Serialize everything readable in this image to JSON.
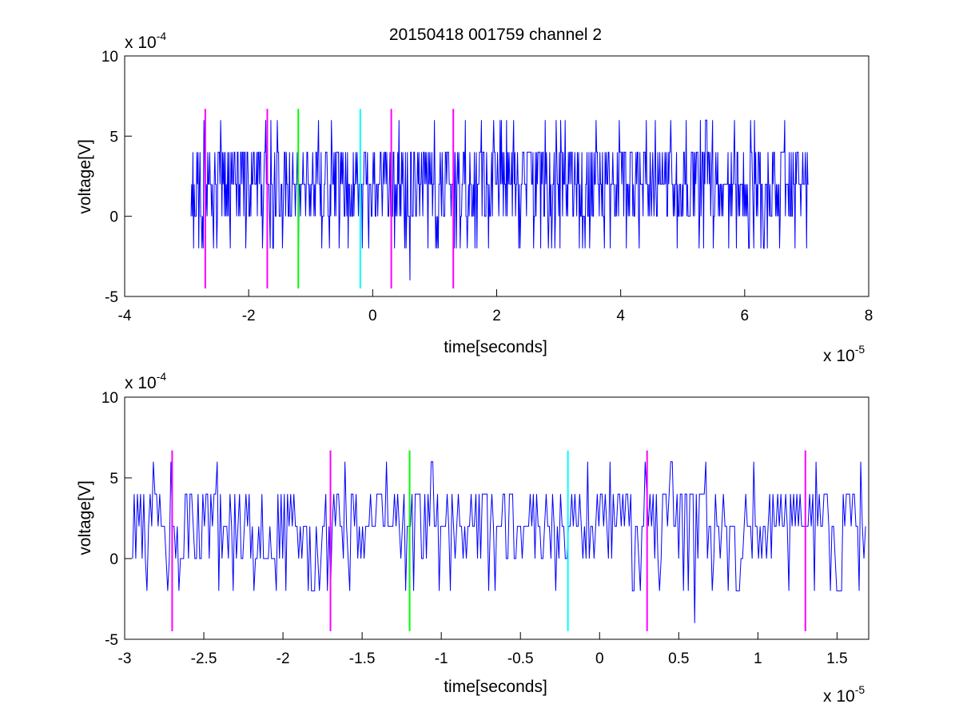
{
  "chart_data": [
    {
      "type": "line",
      "title": "20150418 001759 channel 2",
      "xlabel": "time[seconds]",
      "ylabel": "voltage[V]",
      "x_multiplier": "x 10",
      "x_exponent": "-5",
      "y_multiplier": "x 10",
      "y_exponent": "-4",
      "xlim": [
        -4,
        8
      ],
      "ylim": [
        -5,
        10
      ],
      "xticks": [
        "-4",
        "-2",
        "0",
        "2",
        "4",
        "6",
        "8"
      ],
      "yticks": [
        "-5",
        "0",
        "5",
        "10"
      ],
      "series": [
        {
          "color": "#0000ff",
          "x_range": [
            -2.93,
            7.03
          ],
          "samples": 960,
          "levels": [
            -4,
            -2,
            0,
            2,
            4,
            6
          ],
          "baseline": 2,
          "spikes": [
            [
              -2.45,
              6
            ],
            [
              1.95,
              6
            ],
            [
              3.1,
              6
            ],
            [
              3.6,
              6
            ],
            [
              0.6,
              -4
            ]
          ]
        }
      ],
      "markers": [
        {
          "x": -2.7,
          "color": "#ff00ff"
        },
        {
          "x": -1.7,
          "color": "#ff00ff"
        },
        {
          "x": -1.2,
          "color": "#00ff00"
        },
        {
          "x": -0.2,
          "color": "#00ffff"
        },
        {
          "x": 0.3,
          "color": "#ff00ff"
        },
        {
          "x": 1.3,
          "color": "#ff00ff"
        }
      ],
      "marker_y_range": [
        -4.5,
        6.7
      ]
    },
    {
      "type": "line",
      "title": "",
      "xlabel": "time[seconds]",
      "ylabel": "voltage[V]",
      "x_multiplier": "x 10",
      "x_exponent": "-5",
      "y_multiplier": "x 10",
      "y_exponent": "-4",
      "xlim": [
        -3,
        1.7
      ],
      "ylim": [
        -5,
        10
      ],
      "xticks": [
        "-3",
        "-2.5",
        "-2",
        "-1.5",
        "-1",
        "-0.5",
        "0",
        "0.5",
        "1",
        "1.5"
      ],
      "yticks": [
        "-5",
        "0",
        "5",
        "10"
      ],
      "series": [
        {
          "color": "#0000ff",
          "x_range": [
            -2.95,
            1.68
          ],
          "samples": 460,
          "levels": [
            -4,
            -2,
            0,
            2,
            4,
            6
          ],
          "baseline": 2,
          "spikes": [
            [
              -2.42,
              6
            ],
            [
              -1.35,
              6
            ],
            [
              1.37,
              6
            ],
            [
              0.6,
              -4
            ],
            [
              -1.81,
              -2
            ],
            [
              -2.73,
              -2
            ]
          ]
        }
      ],
      "markers": [
        {
          "x": -2.7,
          "color": "#ff00ff"
        },
        {
          "x": -1.7,
          "color": "#ff00ff"
        },
        {
          "x": -1.2,
          "color": "#00ff00"
        },
        {
          "x": -0.2,
          "color": "#00ffff"
        },
        {
          "x": 0.3,
          "color": "#ff00ff"
        },
        {
          "x": 1.3,
          "color": "#ff00ff"
        }
      ],
      "marker_y_range": [
        -4.5,
        6.7
      ]
    }
  ]
}
